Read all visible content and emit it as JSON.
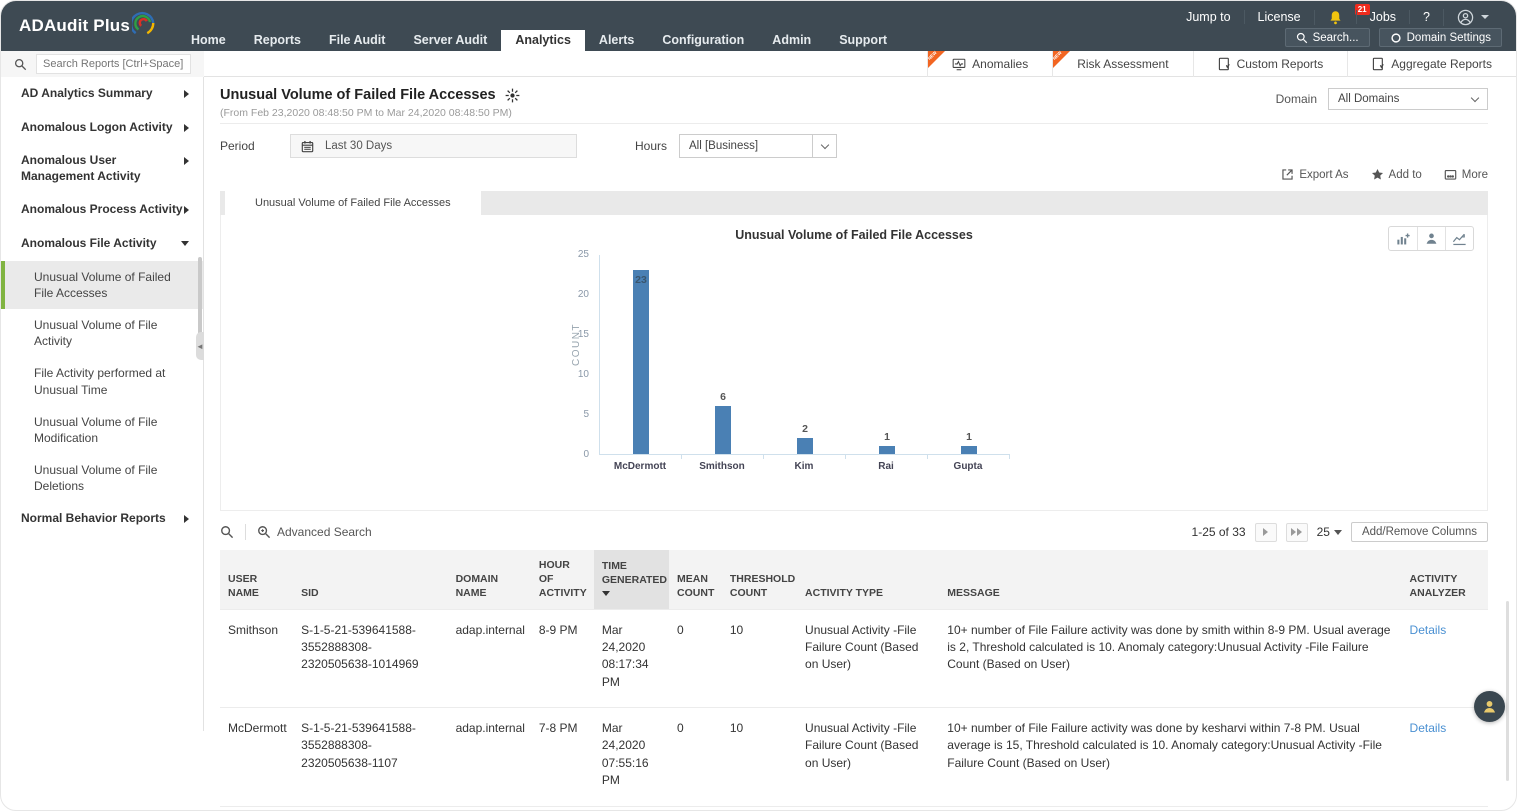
{
  "app": {
    "logo_text": "ADAudit Plus"
  },
  "topbar": {
    "utility": {
      "jump_to": "Jump to",
      "license": "License",
      "notification_count": "21",
      "jobs": "Jobs",
      "help": "?"
    },
    "buttons": {
      "search": "Search...",
      "domain_settings": "Domain Settings"
    },
    "nav_tabs": [
      "Home",
      "Reports",
      "File Audit",
      "Server Audit",
      "Analytics",
      "Alerts",
      "Configuration",
      "Admin",
      "Support"
    ]
  },
  "toolbar": {
    "search_placeholder": "Search Reports [Ctrl+Space]",
    "report_buttons": [
      {
        "label": "Anomalies",
        "ribbon": "NEW"
      },
      {
        "label": "Risk Assessment",
        "ribbon": "NEW"
      },
      {
        "label": "Custom Reports",
        "ribbon": ""
      },
      {
        "label": "Aggregate Reports",
        "ribbon": ""
      }
    ]
  },
  "sidebar": {
    "items": [
      {
        "label": "AD Analytics Summary"
      },
      {
        "label": "Anomalous Logon Activity"
      },
      {
        "label": "Anomalous User Management Activity"
      },
      {
        "label": "Anomalous Process Activity"
      },
      {
        "label": "Anomalous File Activity"
      },
      {
        "label": "Normal Behavior Reports"
      }
    ],
    "file_activity_children": [
      {
        "label": "Unusual Volume of Failed File Accesses"
      },
      {
        "label": "Unusual Volume of File Activity"
      },
      {
        "label": "File Activity performed at Unusual Time"
      },
      {
        "label": "Unusual Volume of File Modification"
      },
      {
        "label": "Unusual Volume of File Deletions"
      }
    ]
  },
  "report": {
    "title": "Unusual Volume of Failed File Accesses",
    "date_range": "(From Feb 23,2020 08:48:50 PM to Mar 24,2020 08:48:50 PM)",
    "domain_label": "Domain",
    "domain_value": "All Domains",
    "period_label": "Period",
    "period_value": "Last 30 Days",
    "hours_label": "Hours",
    "hours_value": "All [Business]",
    "actions": {
      "export_as": "Export As",
      "add_to": "Add to",
      "more": "More"
    },
    "active_tab": "Unusual Volume of Failed File Accesses"
  },
  "chart_data": {
    "type": "bar",
    "title": "Unusual Volume of Failed File Accesses",
    "categories": [
      "McDermott",
      "Smithson",
      "Kim",
      "Rai",
      "Gupta"
    ],
    "values": [
      23,
      6,
      2,
      1,
      1
    ],
    "xlabel": "",
    "ylabel": "COUNT",
    "ylim": [
      0,
      25
    ],
    "yticks": [
      0,
      5,
      10,
      15,
      20,
      25
    ],
    "bar_color": "#4a80b4",
    "grid": false,
    "legend": "none"
  },
  "table": {
    "advanced_search_label": "Advanced Search",
    "pagination": {
      "range": "1-25 of 33",
      "page_size": "25"
    },
    "add_remove_columns_label": "Add/Remove Columns",
    "columns": [
      "USER NAME",
      "SID",
      "DOMAIN NAME",
      "HOUR OF ACTIVITY",
      "TIME GENERATED",
      "MEAN COUNT",
      "THRESHOLD COUNT",
      "ACTIVITY TYPE",
      "MESSAGE",
      "ACTIVITY ANALYZER"
    ],
    "rows": [
      {
        "user_name": "Smithson",
        "sid": "S-1-5-21-539641588-3552888308-2320505638-1014969",
        "domain_name": "adap.internal",
        "hour_of_activity": "8-9 PM",
        "time_generated": "Mar 24,2020 08:17:34 PM",
        "mean_count": "0",
        "threshold_count": "10",
        "activity_type": "Unusual Activity -File Failure Count (Based on User)",
        "message": "10+ number of File Failure activity was done by smith within 8-9 PM. Usual average is 2, Threshold calculated is 10. Anomaly category:Unusual Activity -File Failure Count (Based on User)",
        "analyzer_link": "Details"
      },
      {
        "user_name": "McDermott",
        "sid": "S-1-5-21-539641588-3552888308-2320505638-1107",
        "domain_name": "adap.internal",
        "hour_of_activity": "7-8 PM",
        "time_generated": "Mar 24,2020 07:55:16 PM",
        "mean_count": "0",
        "threshold_count": "10",
        "activity_type": "Unusual Activity -File Failure Count (Based on User)",
        "message": "10+ number of File Failure activity was done by kesharvi within 7-8 PM. Usual average is 15, Threshold calculated is 10. Anomaly category:Unusual Activity -File Failure Count (Based on User)",
        "analyzer_link": "Details"
      }
    ]
  },
  "colors": {
    "header_bg": "#3e4a53",
    "accent_green": "#80b441",
    "bar_blue": "#4a80b4",
    "ribbon_orange": "#f26522",
    "badge_red": "#f02b1d",
    "bell_yellow": "#f1c40f",
    "link_blue": "#4a90d2"
  }
}
